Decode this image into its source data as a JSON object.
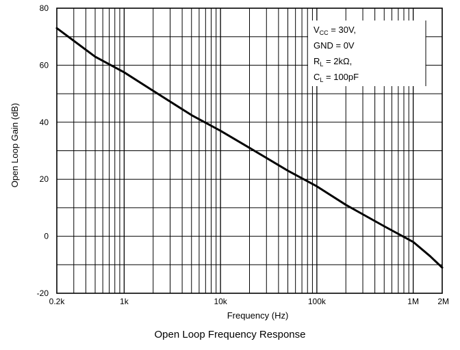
{
  "caption": "Open Loop Frequency Response",
  "chart_data": {
    "type": "line",
    "xlabel": "Frequency (Hz)",
    "ylabel": "Open Loop Gain (dB)",
    "xscale": "log",
    "xlim": [
      200,
      2000000
    ],
    "ylim": [
      -20,
      80
    ],
    "y_ticks": [
      -20,
      0,
      20,
      40,
      60,
      80
    ],
    "y_tick_labels": [
      "-20",
      "0",
      "20",
      "40",
      "60",
      "80"
    ],
    "x_ticks": [
      200,
      1000,
      10000,
      100000,
      1000000,
      2000000
    ],
    "x_tick_labels": [
      "0.2k",
      "1k",
      "10k",
      "100k",
      "1M",
      "2M"
    ],
    "grid": true,
    "legend_placement": "top-right",
    "conditions": [
      {
        "main": "V",
        "sub": "CC",
        "rest": " = 30V,"
      },
      {
        "main": "GND = 0V",
        "sub": "",
        "rest": ""
      },
      {
        "main": "R",
        "sub": "L",
        "rest": " = 2kΩ,"
      },
      {
        "main": "C",
        "sub": "L",
        "rest": " = 100pF"
      }
    ],
    "series": [
      {
        "x": [
          200,
          500,
          1000,
          2000,
          5000,
          10000,
          20000,
          50000,
          100000,
          200000,
          500000,
          1000000,
          1500000,
          2000000
        ],
        "values": [
          73,
          63,
          57.5,
          51,
          42.5,
          37,
          31,
          23,
          17.5,
          11,
          3.5,
          -2,
          -7,
          -11
        ]
      }
    ]
  }
}
